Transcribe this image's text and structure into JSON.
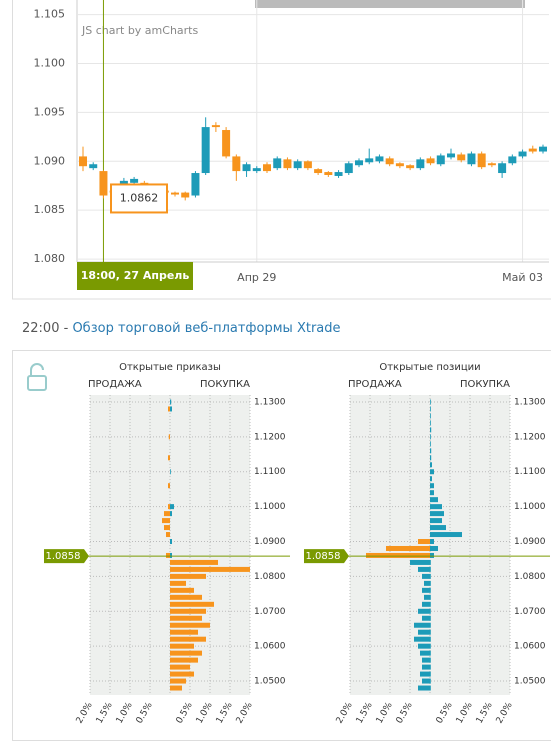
{
  "chart_data": [
    {
      "type": "candlestick",
      "credit": "JS chart by amCharts",
      "cursor_label": "18:00, 27 Апрель",
      "cursor_value": 1.0862,
      "categories": [
        null,
        null,
        null,
        null,
        null,
        null,
        null,
        null,
        null,
        null,
        null,
        null,
        null,
        null,
        null,
        null,
        null,
        "Апр 29",
        null,
        null,
        null,
        null,
        null,
        null,
        null,
        null,
        null,
        null,
        null,
        null,
        null,
        null,
        null,
        null,
        null,
        null,
        null,
        null,
        null,
        null,
        null,
        null,
        null,
        "Май 03",
        null,
        null
      ],
      "open": [
        1.0905,
        1.0893,
        1.089,
        1.087,
        1.0875,
        1.0878,
        1.0878,
        1.0875,
        1.087,
        1.0868,
        1.0868,
        1.0865,
        1.0888,
        1.0937,
        1.0932,
        1.0905,
        1.089,
        1.089,
        1.0897,
        1.0893,
        1.0902,
        1.0893,
        1.09,
        1.0892,
        1.0889,
        1.0885,
        1.0888,
        1.0896,
        1.0899,
        1.09,
        1.0903,
        1.0898,
        1.0896,
        1.0893,
        1.0903,
        1.0897,
        1.0904,
        1.0907,
        1.0897,
        1.0908,
        1.0898,
        1.0888,
        1.0898,
        1.0905,
        1.0913,
        1.091
      ],
      "high": [
        1.0915,
        1.0899,
        1.0891,
        1.0872,
        1.0883,
        1.0884,
        1.088,
        1.0876,
        1.0871,
        1.0869,
        1.0869,
        1.089,
        1.0945,
        1.094,
        1.0935,
        1.0907,
        1.0899,
        1.0895,
        1.0899,
        1.0905,
        1.0904,
        1.0902,
        1.0901,
        1.0893,
        1.089,
        1.0891,
        1.09,
        1.0903,
        1.0913,
        1.0907,
        1.0905,
        1.0899,
        1.0897,
        1.0904,
        1.0905,
        1.0908,
        1.0913,
        1.0909,
        1.091,
        1.091,
        1.0899,
        1.09,
        1.0907,
        1.0912,
        1.0916,
        1.0917
      ],
      "low": [
        1.089,
        1.0891,
        1.0862,
        1.0866,
        1.0873,
        1.0876,
        1.087,
        1.0866,
        1.0866,
        1.0864,
        1.086,
        1.0863,
        1.0886,
        1.093,
        1.0903,
        1.088,
        1.0884,
        1.0888,
        1.0888,
        1.0891,
        1.0891,
        1.0891,
        1.0891,
        1.0886,
        1.0884,
        1.0883,
        1.0886,
        1.0894,
        1.0897,
        1.0898,
        1.0895,
        1.0893,
        1.0891,
        1.0891,
        1.0896,
        1.0895,
        1.0902,
        1.0899,
        1.0895,
        1.0892,
        1.0894,
        1.0883,
        1.0896,
        1.0903,
        1.0908,
        1.0908
      ],
      "close": [
        1.0895,
        1.0897,
        1.0865,
        1.0868,
        1.088,
        1.0882,
        1.0872,
        1.0868,
        1.0868,
        1.0866,
        1.0863,
        1.0888,
        1.0935,
        1.0935,
        1.0905,
        1.089,
        1.0897,
        1.0893,
        1.089,
        1.0903,
        1.0893,
        1.09,
        1.0893,
        1.0888,
        1.0886,
        1.0889,
        1.0898,
        1.0901,
        1.0903,
        1.0905,
        1.0897,
        1.0895,
        1.0893,
        1.0902,
        1.0898,
        1.0906,
        1.0908,
        1.0901,
        1.0908,
        1.0894,
        1.0896,
        1.0898,
        1.0905,
        1.091,
        1.091,
        1.0915
      ],
      "up_color": "#1d9bb8",
      "down_color": "#f7941d",
      "ylim": [
        1.0797,
        1.1065
      ],
      "yticks": [
        {
          "value": 1.08,
          "label": "1.080"
        },
        1.085,
        {
          "value": 1.09,
          "label": "1.090"
        },
        1.095,
        {
          "value": 1.1,
          "label": "1.100"
        },
        1.105
      ],
      "grid": true
    },
    {
      "type": "butterfly",
      "title": "Открытые приказы",
      "current_price": 1.0858,
      "y": [
        1.048,
        1.05,
        1.052,
        1.054,
        1.056,
        1.058,
        1.06,
        1.062,
        1.064,
        1.066,
        1.068,
        1.07,
        1.072,
        1.074,
        1.076,
        1.078,
        1.08,
        1.082,
        1.084,
        1.086,
        1.088,
        1.09,
        1.092,
        1.094,
        1.096,
        1.098,
        1.1,
        1.102,
        1.104,
        1.106,
        1.108,
        1.11,
        1.112,
        1.114,
        1.116,
        1.118,
        1.12,
        1.122,
        1.124,
        1.126,
        1.128,
        1.13
      ],
      "series": [
        {
          "name": "ПРОДАЖА",
          "side": "left",
          "colors": {
            "below": "#f7941d",
            "above": "#f7941d"
          },
          "values": [
            0,
            0,
            0,
            0,
            0,
            0,
            0,
            0,
            0,
            0,
            0,
            0,
            0,
            0,
            0,
            0,
            0,
            0,
            0,
            0.1,
            0,
            0,
            0.1,
            0.15,
            0.2,
            0.15,
            0.05,
            0,
            0,
            0.05,
            0,
            0,
            0,
            0.05,
            0,
            0,
            0.03,
            0,
            0,
            0,
            0.05,
            0
          ]
        },
        {
          "name": "ПОКУПКА",
          "side": "right",
          "colors": {
            "below": "#f7941d",
            "above": "#1d9bb8"
          },
          "values": [
            0.3,
            0.4,
            0.6,
            0.5,
            0.7,
            0.8,
            0.6,
            0.9,
            0.7,
            1,
            0.8,
            0.9,
            1.1,
            0.8,
            0.6,
            0.4,
            0.9,
            2,
            1.2,
            0.05,
            0,
            0.05,
            0,
            0,
            0,
            0.05,
            0.1,
            0,
            0,
            0,
            0,
            0.02,
            0,
            0,
            0,
            0,
            0,
            0,
            0,
            0,
            0.05,
            0.03
          ]
        }
      ],
      "ylim": [
        1.046,
        1.132
      ],
      "yticks": [
        {
          "value": 1.05,
          "label": "1.0500"
        },
        {
          "value": 1.06,
          "label": "1.0600"
        },
        {
          "value": 1.07,
          "label": "1.0700"
        },
        {
          "value": 1.08,
          "label": "1.0800"
        },
        {
          "value": 1.09,
          "label": "1.0900"
        },
        {
          "value": 1.1,
          "label": "1.1000"
        },
        {
          "value": 1.11,
          "label": "1.1100"
        },
        {
          "value": 1.12,
          "label": "1.1200"
        },
        {
          "value": 1.13,
          "label": "1.1300"
        }
      ],
      "xlim": [
        -2,
        2
      ],
      "xticks": [
        {
          "value": -2,
          "label": "2.0%"
        },
        {
          "value": -1.5,
          "label": "1.5%"
        },
        {
          "value": -1,
          "label": "1.0%"
        },
        {
          "value": -0.5,
          "label": "0.5%"
        },
        {
          "value": 0.5,
          "label": "0.5%"
        },
        {
          "value": 1,
          "label": "1.0%"
        },
        {
          "value": 1.5,
          "label": "1.5%"
        },
        {
          "value": 2,
          "label": "2.0%"
        }
      ],
      "grid": true
    },
    {
      "type": "butterfly",
      "title": "Открытые позиции",
      "current_price": 1.0858,
      "y": [
        1.048,
        1.05,
        1.052,
        1.054,
        1.056,
        1.058,
        1.06,
        1.062,
        1.064,
        1.066,
        1.068,
        1.07,
        1.072,
        1.074,
        1.076,
        1.078,
        1.08,
        1.082,
        1.084,
        1.086,
        1.088,
        1.09,
        1.092,
        1.094,
        1.096,
        1.098,
        1.1,
        1.102,
        1.104,
        1.106,
        1.108,
        1.11,
        1.112,
        1.114,
        1.116,
        1.118,
        1.12,
        1.122,
        1.124,
        1.126,
        1.128,
        1.13
      ],
      "series": [
        {
          "name": "ПРОДАЖА",
          "side": "left",
          "colors": {
            "below": "#1d9bb8",
            "above": "#f7941d"
          },
          "values": [
            0.3,
            0.2,
            0.25,
            0.2,
            0.2,
            0.25,
            0.3,
            0.4,
            0.3,
            0.4,
            0.2,
            0.3,
            0.2,
            0.15,
            0.2,
            0.15,
            0.2,
            0.3,
            0.5,
            1.6,
            1.1,
            0.3,
            0,
            0,
            0,
            0,
            0,
            0,
            0,
            0,
            0,
            0,
            0,
            0,
            0,
            0,
            0,
            0,
            0,
            0,
            0,
            0
          ]
        },
        {
          "name": "ПОКУПКА",
          "side": "right",
          "colors": {
            "below": "#1d9bb8",
            "above": "#1d9bb8"
          },
          "values": [
            0.02,
            0.02,
            0.02,
            0.02,
            0.02,
            0.02,
            0.02,
            0.02,
            0.02,
            0.02,
            0.02,
            0.02,
            0.02,
            0.02,
            0.02,
            0.02,
            0.02,
            0.02,
            0.02,
            0.1,
            0.2,
            0.1,
            0.8,
            0.4,
            0.3,
            0.35,
            0.3,
            0.2,
            0.1,
            0.1,
            0.05,
            0.1,
            0.05,
            0.03,
            0.03,
            0.02,
            0.02,
            0.03,
            0.02,
            0.02,
            0.02,
            0.02
          ]
        }
      ],
      "ylim": [
        1.046,
        1.132
      ],
      "yticks": [
        {
          "value": 1.05,
          "label": "1.0500"
        },
        {
          "value": 1.06,
          "label": "1.0600"
        },
        {
          "value": 1.07,
          "label": "1.0700"
        },
        {
          "value": 1.08,
          "label": "1.0800"
        },
        {
          "value": 1.09,
          "label": "1.0900"
        },
        {
          "value": 1.1,
          "label": "1.1000"
        },
        {
          "value": 1.11,
          "label": "1.1100"
        },
        {
          "value": 1.12,
          "label": "1.1200"
        },
        {
          "value": 1.13,
          "label": "1.1300"
        }
      ],
      "xlim": [
        -2,
        2
      ],
      "xticks": [
        {
          "value": -2,
          "label": "2.0%"
        },
        {
          "value": -1.5,
          "label": "1.5%"
        },
        {
          "value": -1,
          "label": "1.0%"
        },
        {
          "value": -0.5,
          "label": "0.5%"
        },
        {
          "value": 0.5,
          "label": "0.5%"
        },
        {
          "value": 1,
          "label": "1.0%"
        },
        {
          "value": 1.5,
          "label": "1.5%"
        },
        {
          "value": 2,
          "label": "2.0%"
        }
      ],
      "grid": true
    }
  ],
  "header": {
    "time": "22:00",
    "separator": "-",
    "link": "Обзор торговой веб-платформы Xtrade"
  }
}
